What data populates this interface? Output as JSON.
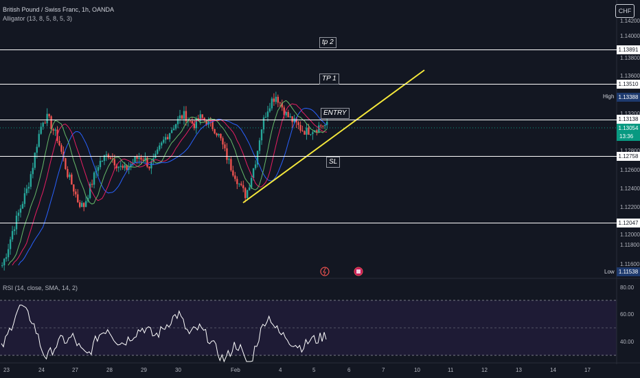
{
  "chart": {
    "title": "British Pound / Swiss Franc, 1h, OANDA",
    "indicator": "Alligator (13, 8, 5, 8, 5, 3)",
    "currency": "CHF"
  },
  "price_axis": {
    "ticks": [
      "1.14200",
      "1.14000",
      "1.13800",
      "1.13600",
      "1.13400",
      "1.13200",
      "1.13000",
      "1.12800",
      "1.12600",
      "1.12400",
      "1.12200",
      "1.12000",
      "1.11800",
      "1.11600"
    ],
    "labels": {
      "tp2": "1.13891",
      "tp1": "1.13510",
      "high_tag": "High",
      "high": "1.13388",
      "entry": "1.13138",
      "last": "1.13054",
      "countdown": "13:36",
      "sl": "1.12758",
      "bottom": "1.12047",
      "low_tag": "Low",
      "low": "1.11538"
    }
  },
  "annotations": {
    "tp2": "tp 2",
    "tp1": "TP 1",
    "entry": "ENTRY",
    "sl": "SL"
  },
  "rsi": {
    "title": "RSI (14, close, SMA, 14, 2)",
    "ticks": [
      "80.00",
      "60.00",
      "40.00"
    ]
  },
  "time_axis": [
    "23",
    "24",
    "27",
    "28",
    "29",
    "30",
    "Feb",
    "4",
    "5",
    "6",
    "7",
    "10",
    "11",
    "12",
    "13",
    "14",
    "17"
  ],
  "colors": {
    "background": "#131722",
    "up": "#26a69a",
    "down": "#ef5350",
    "trendline": "#f5e83b",
    "jaw": "#2962ff",
    "teeth": "#e91e63",
    "lips": "#66bb6a",
    "rsi_line": "#ffffff",
    "rsi_band": "#1e1b35",
    "last_price": "#089981"
  },
  "chart_data": {
    "type": "candlestick",
    "title": "British Pound / Swiss Franc, 1h, OANDA",
    "ylim": [
      1.115,
      1.143
    ],
    "levels": {
      "tp2": 1.13891,
      "tp1": 1.1351,
      "entry": 1.13138,
      "sl": 1.12758,
      "support": 1.12047
    },
    "close_path": [
      1.116,
      1.1175,
      1.1195,
      1.121,
      1.1225,
      1.124,
      1.1262,
      1.129,
      1.131,
      1.1312,
      1.13,
      1.129,
      1.127,
      1.1252,
      1.124,
      1.1225,
      1.122,
      1.1235,
      1.125,
      1.1265,
      1.127,
      1.1275,
      1.1268,
      1.1262,
      1.1258,
      1.1262,
      1.1268,
      1.1272,
      1.127,
      1.1262,
      1.1268,
      1.128,
      1.129,
      1.1298,
      1.1305,
      1.1312,
      1.1315,
      1.1308,
      1.1305,
      1.1312,
      1.131,
      1.1305,
      1.13,
      1.129,
      1.1275,
      1.1262,
      1.1252,
      1.124,
      1.1232,
      1.125,
      1.127,
      1.13,
      1.1318,
      1.133,
      1.1335,
      1.1325,
      1.1315,
      1.131,
      1.1305,
      1.13,
      1.1298,
      1.13,
      1.1302,
      1.1305,
      1.1304
    ],
    "rsi_range": [
      30,
      85
    ],
    "rsi_path": [
      45,
      52,
      62,
      72,
      76,
      70,
      66,
      56,
      44,
      38,
      44,
      48,
      52,
      50,
      54,
      48,
      42,
      40,
      46,
      54,
      57,
      60,
      54,
      50,
      49,
      52,
      55,
      58,
      60,
      58,
      54,
      56,
      60,
      64,
      68,
      70,
      62,
      55,
      58,
      60,
      56,
      52,
      46,
      40,
      36,
      42,
      48,
      46,
      36,
      32,
      46,
      56,
      66,
      68,
      60,
      55,
      54,
      50,
      48,
      46,
      48,
      52,
      51,
      53,
      55
    ]
  }
}
